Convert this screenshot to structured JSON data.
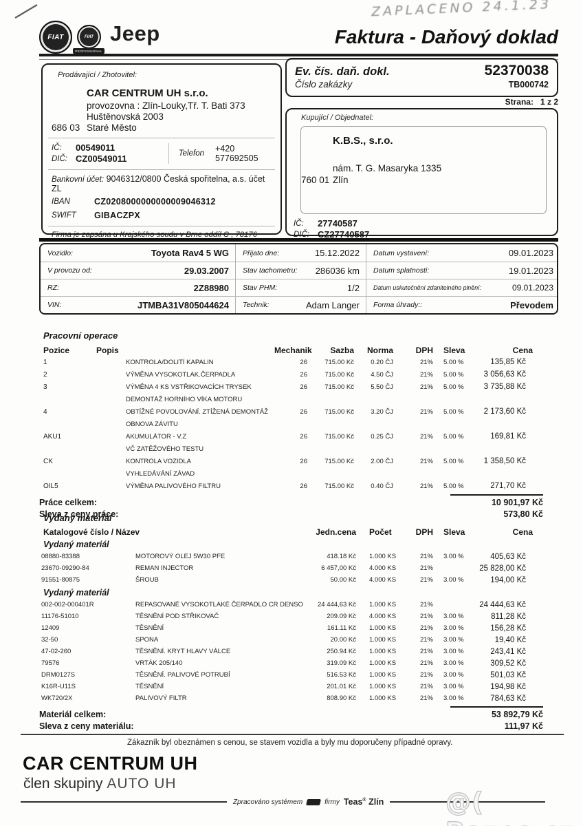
{
  "header": {
    "logo_fiat": "FIAT",
    "logo_fiat_small": "FIAT",
    "logo_fiat_professional": "PROFESSIONAL",
    "logo_jeep": "Jeep",
    "handwritten_note": "ZAPLACENO 24.1.23",
    "title": "Faktura - Daňový doklad"
  },
  "doc": {
    "ev_label": "Ev. čís. daň. dokl.",
    "ev_number": "52370038",
    "order_label": "Číslo zakázky",
    "order_number": "TB000742",
    "page_label": "Strana:",
    "page_value": "1 z 2"
  },
  "seller": {
    "box_label": "Prodávající / Zhotovitel:",
    "name": "CAR CENTRUM UH s.r.o.",
    "address1": "provozovna : Zlín-Louky,Tř. T. Bati 373",
    "address2": "Huštěnovská 2003",
    "zip": "686 03",
    "city": "Staré Město",
    "ic_label": "IČ:",
    "ic": "00549011",
    "dic_label": "DIČ:",
    "dic": "CZ00549011",
    "phone_label": "Telefon",
    "phone": "+420 577692505",
    "bank_label": "Bankovní účet:",
    "bank": "9046312/0800  Česká spořitelna, a.s. účet ZL",
    "iban_label": "IBAN",
    "iban": "CZ0208000000000009046312",
    "swift_label": "SWIFT",
    "swift": "GIBACZPX",
    "registry": "Firma je zapsána u Krajského soudu v Brne oddíl C , 78176"
  },
  "buyer": {
    "box_label": "Kupující / Objednatel:",
    "name": "K.B.S., s.r.o.",
    "address": "nám. T. G. Masaryka 1335",
    "zip": "760 01",
    "city": "Zlín",
    "ic_label": "IČ:",
    "ic": "27740587",
    "dic_label": "DIČ:",
    "dic": "CZ27740587"
  },
  "vehicle": {
    "rows": [
      [
        {
          "l": "Vozidlo:",
          "v": "Toyota Rav4 5 WG",
          "b": 1
        },
        {
          "l": "Přijato dne:",
          "v": "15.12.2022"
        },
        {
          "l": "Datum vystavení:",
          "v": "09.01.2023"
        }
      ],
      [
        {
          "l": "V provozu od:",
          "v": "29.03.2007",
          "b": 1
        },
        {
          "l": "Stav tachometru:",
          "v": "286036 km"
        },
        {
          "l": "Datum splatnosti:",
          "v": "19.01.2023"
        }
      ],
      [
        {
          "l": "RZ:",
          "v": "2Z88980",
          "b": 1
        },
        {
          "l": "Stav PHM:",
          "v": "1/2"
        },
        {
          "l": "Datum uskutečnění zdanitelného plnění:",
          "v": "09.01.2023",
          "small": 1
        }
      ],
      [
        {
          "l": "VIN:",
          "v": "JTMBA31V805044624",
          "b": 1
        },
        {
          "l": "Technik:",
          "v": "Adam Langer"
        },
        {
          "l": "Forma úhrady::",
          "v": "Převodem",
          "b": 1
        }
      ]
    ]
  },
  "work": {
    "title": "Pracovní operace",
    "headers": {
      "pos": "Pozice",
      "desc": "Popis",
      "mech": "Mechanik",
      "rate": "Sazba",
      "norm": "Norma",
      "vat": "DPH",
      "disc": "Sleva",
      "price": "Cena"
    },
    "rows": [
      {
        "pos": "1",
        "desc": "KONTROLA/DOLITÍ KAPALIN",
        "mech": "26",
        "rate": "715.00 Kč",
        "norm": "0.20 ČJ",
        "vat": "21%",
        "disc": "5.00 %",
        "price": "135,85 Kč"
      },
      {
        "pos": "2",
        "desc": "VÝMĚNA VYSOKOTLAK.ČERPADLA",
        "mech": "26",
        "rate": "715.00 Kč",
        "norm": "4.50 ČJ",
        "vat": "21%",
        "disc": "5.00 %",
        "price": "3 056,63 Kč"
      },
      {
        "pos": "3",
        "desc": "VÝMĚNA 4 KS VSTŘIKOVACÍCH TRYSEK",
        "mech": "26",
        "rate": "715.00 Kč",
        "norm": "5.50 ČJ",
        "vat": "21%",
        "disc": "5.00 %",
        "price": "3 735,88 Kč"
      },
      {
        "desc": "DEMONTÁŽ HORNÍHO VÍKA MOTORU"
      },
      {
        "pos": "4",
        "desc": "OBTÍŽNÉ POVOLOVÁNÍ. ZTÍŽENÁ DEMONTÁŽ",
        "mech": "26",
        "rate": "715.00 Kč",
        "norm": "3.20 ČJ",
        "vat": "21%",
        "disc": "5.00 %",
        "price": "2 173,60 Kč"
      },
      {
        "desc": "OBNOVA ZÁVITU"
      },
      {
        "pos": "AKU1",
        "desc": "AKUMULÁTOR - V.Z",
        "mech": "26",
        "rate": "715.00 Kč",
        "norm": "0.25 ČJ",
        "vat": "21%",
        "disc": "5.00 %",
        "price": "169,81 Kč"
      },
      {
        "desc": "VČ ZATĚŽOVÉHO TESTU"
      },
      {
        "pos": "CK",
        "desc": "KONTROLA VOZIDLA",
        "mech": "26",
        "rate": "715.00 Kč",
        "norm": "2.00 ČJ",
        "vat": "21%",
        "disc": "5.00 %",
        "price": "1 358,50 Kč"
      },
      {
        "desc": "VYHLEDÁVÁNÍ ZÁVAD"
      },
      {
        "pos": "OIL5",
        "desc": "VÝMĚNA PALIVOVÉHO FILTRU",
        "mech": "26",
        "rate": "715.00 Kč",
        "norm": "0.40 ČJ",
        "vat": "21%",
        "disc": "5.00 %",
        "price": "271,70 Kč"
      }
    ],
    "totals": [
      {
        "label": "Práce celkem:",
        "value": "10 901,97 Kč"
      },
      {
        "label": "Sleva z ceny práce:",
        "value": "573,80 Kč"
      }
    ]
  },
  "material": {
    "title": "Vydaný materiál",
    "headers": {
      "code": "Katalogové číslo / Název",
      "unit": "Jedn.cena",
      "qty": "Počet",
      "vat": "DPH",
      "disc": "Sleva",
      "price": "Cena"
    },
    "rows": [
      {
        "group": "Vydaný materiál"
      },
      {
        "code": "08880-83388",
        "name": "MOTOROVÝ OLEJ 5W30 PFE",
        "unit": "418.18 Kč",
        "qty": "1.000 KS",
        "vat": "21%",
        "disc": "3.00 %",
        "price": "405,63 Kč"
      },
      {
        "code": "23670-09290-84",
        "name": "REMAN INJECTOR",
        "unit": "6 457,00 Kč",
        "qty": "4.000 KS",
        "vat": "21%",
        "disc": "",
        "price": "25 828,00 Kč"
      },
      {
        "code": "91551-80875",
        "name": "ŠROUB",
        "unit": "50.00 Kč",
        "qty": "4.000 KS",
        "vat": "21%",
        "disc": "3.00 %",
        "price": "194,00 Kč"
      },
      {
        "group": "Vydaný materiál"
      },
      {
        "code": "002-002-000401R",
        "name": "REPASOVANÉ VYSOKOTLAKÉ ČERPADLO CR DENSO",
        "unit": "24 444,63 Kč",
        "qty": "1.000 KS",
        "vat": "21%",
        "disc": "",
        "price": "24 444,63 Kč"
      },
      {
        "code": "11176-51010",
        "name": "TĚSNĚNÍ POD STŘIKOVAČ",
        "unit": "209.09 Kč",
        "qty": "4.000 KS",
        "vat": "21%",
        "disc": "3.00 %",
        "price": "811,28 Kč"
      },
      {
        "code": "12409",
        "name": "TĚSNĚNÍ",
        "unit": "161.11 Kč",
        "qty": "1.000 KS",
        "vat": "21%",
        "disc": "3.00 %",
        "price": "156,28 Kč"
      },
      {
        "code": "32-50",
        "name": "SPONA",
        "unit": "20.00 Kč",
        "qty": "1.000 KS",
        "vat": "21%",
        "disc": "3.00 %",
        "price": "19,40 Kč"
      },
      {
        "code": "47-02-260",
        "name": "TĚSNĚNÍ. KRYT HLAVY VÁLCE",
        "unit": "250.94 Kč",
        "qty": "1.000 KS",
        "vat": "21%",
        "disc": "3.00 %",
        "price": "243,41 Kč"
      },
      {
        "code": "79576",
        "name": "VRTÁK 205/140",
        "unit": "319.09 Kč",
        "qty": "1.000 KS",
        "vat": "21%",
        "disc": "3.00 %",
        "price": "309,52 Kč"
      },
      {
        "code": "DRM0127S",
        "name": "TĚSNĚNÍ. PALIVOVÉ POTRUBÍ",
        "unit": "516.53 Kč",
        "qty": "1.000 KS",
        "vat": "21%",
        "disc": "3.00 %",
        "price": "501,03 Kč"
      },
      {
        "code": "K16R-U11S",
        "name": "TĚSNĚNÍ",
        "unit": "201.01 Kč",
        "qty": "1.000 KS",
        "vat": "21%",
        "disc": "3.00 %",
        "price": "194,98 Kč"
      },
      {
        "code": "WK720/2X",
        "name": "PALIVOVÝ FILTR",
        "unit": "808.90 Kč",
        "qty": "1.000 KS",
        "vat": "21%",
        "disc": "3.00 %",
        "price": "784,63 Kč"
      }
    ],
    "totals": [
      {
        "label": "Materiál celkem:",
        "value": "53 892,79 Kč"
      },
      {
        "label": "Sleva z ceny materiálu:",
        "value": "111,97 Kč"
      }
    ]
  },
  "note": "Zákazník byl obeznámen s cenou, se stavem vozidla a byly mu doporučeny případné opravy.",
  "footer": {
    "company": "CAR CENTRUM UH",
    "subtitle_prefix": "člen skupiny ",
    "subtitle_brand": "AUTO UH",
    "processed_prefix": "Zpracováno systémem",
    "processed_mid": "firmy",
    "processed_brand": "Teas",
    "processed_reg": "®",
    "processed_city": "Zlín",
    "watermark": "@( Bazos.cz"
  }
}
